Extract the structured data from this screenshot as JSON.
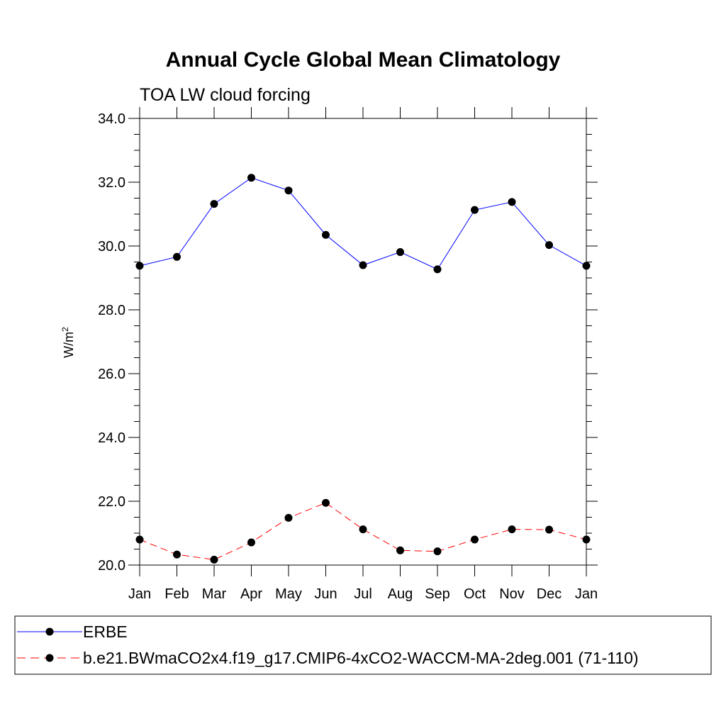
{
  "chart_data": {
    "type": "line",
    "title": "Annual Cycle Global Mean Climatology",
    "subtitle": "TOA LW cloud forcing",
    "ylabel": "W/m",
    "ylabel_superscript": "2",
    "xlabel": "",
    "ylim": [
      20.0,
      34.0
    ],
    "yticks": [
      "20.0",
      "22.0",
      "24.0",
      "26.0",
      "28.0",
      "30.0",
      "32.0",
      "34.0"
    ],
    "categories": [
      "Jan",
      "Feb",
      "Mar",
      "Apr",
      "May",
      "Jun",
      "Jul",
      "Aug",
      "Sep",
      "Oct",
      "Nov",
      "Dec",
      "Jan"
    ],
    "series": [
      {
        "name": "ERBE",
        "color": "#0000ff",
        "style": "solid",
        "values": [
          29.38,
          29.66,
          31.32,
          32.14,
          31.74,
          30.35,
          29.4,
          29.81,
          29.27,
          31.13,
          31.38,
          30.03,
          29.38
        ]
      },
      {
        "name": "b.e21.BWmaCO2x4.f19_g17.CMIP6-4xCO2-WACCM-MA-2deg.001 (71-110)",
        "color": "#ff0000",
        "style": "dashed",
        "values": [
          20.8,
          20.33,
          20.17,
          20.71,
          21.48,
          21.95,
          21.12,
          20.46,
          20.43,
          20.8,
          21.12,
          21.11,
          20.8
        ]
      }
    ],
    "legend_position": "bottom"
  }
}
